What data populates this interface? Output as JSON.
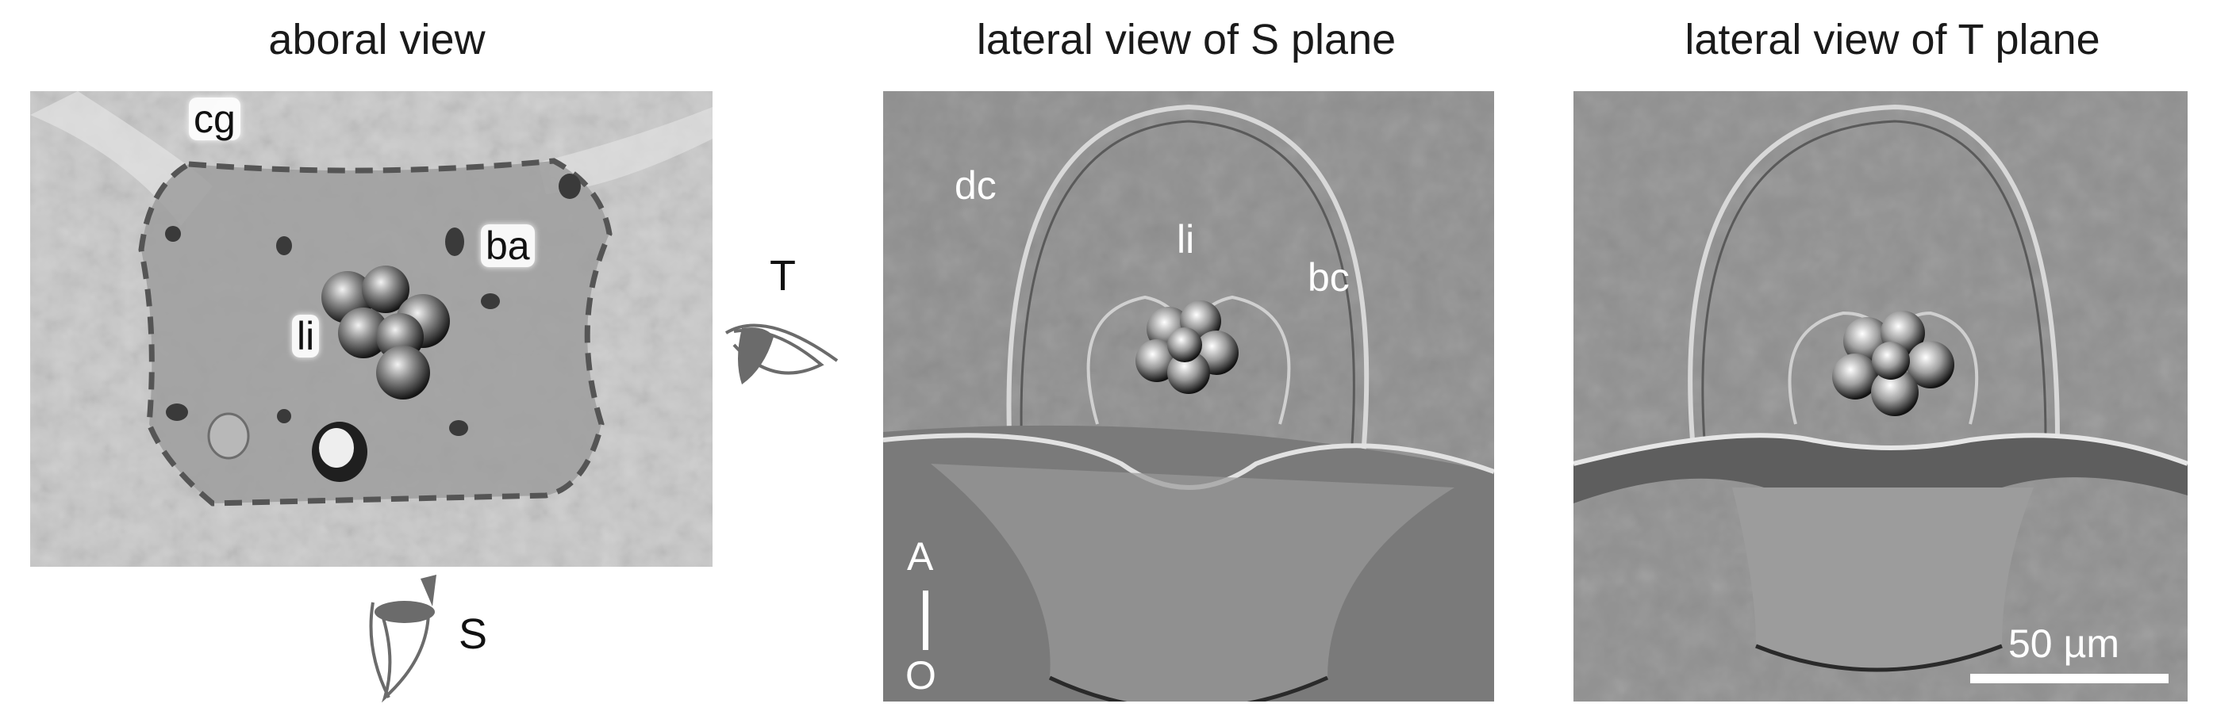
{
  "titles": {
    "left": "aboral view",
    "middle": "lateral view of S plane",
    "right": "lateral view of T plane"
  },
  "panel_left": {
    "labels": {
      "cg": "cg",
      "ba": "ba",
      "li": "li"
    }
  },
  "panel_middle": {
    "labels": {
      "dc": "dc",
      "li": "li",
      "bc": "bc",
      "axis_top": "A",
      "axis_bottom": "O"
    }
  },
  "panel_right": {
    "scale_bar_label": "50 µm"
  },
  "view_markers": {
    "t_label": "T",
    "s_label": "S"
  },
  "colors": {
    "dashed_outline": "#555555",
    "eye_gray": "#6b6b6b",
    "micrograph_gray": "#8e8e8e"
  },
  "icons": [
    "eye-side-icon",
    "eye-top-icon"
  ]
}
